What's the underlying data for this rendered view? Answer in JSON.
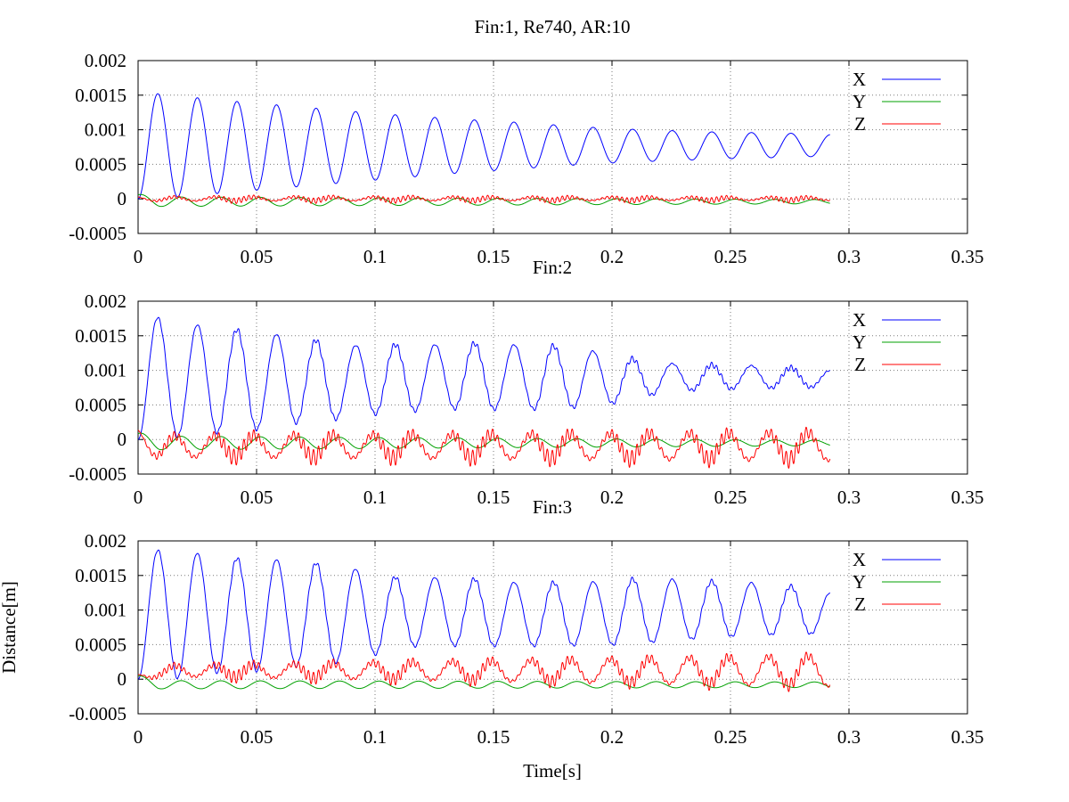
{
  "chart_data": [
    {
      "type": "line",
      "title": "Fin:1, Re740, AR:10",
      "xlabel": "",
      "ylabel": "",
      "xlim": [
        0,
        0.35
      ],
      "ylim": [
        -0.0005,
        0.002
      ],
      "x_ticks": [
        "0",
        "0.05",
        "0.1",
        "0.15",
        "0.2",
        "0.25",
        "0.3",
        "0.35"
      ],
      "y_ticks": [
        "0.002",
        "0.0015",
        "0.001",
        "0.0005",
        "0",
        "-0.0005"
      ],
      "grid": true,
      "legend": "top-right",
      "x_end": 0.292,
      "period": 0.0167,
      "series": [
        {
          "name": "X",
          "color": "#0000ff",
          "peaks": [
            0.00155,
            0.00149,
            0.00143,
            0.00138,
            0.00133,
            0.00128,
            0.00123,
            0.00119,
            0.00115,
            0.00112,
            0.00108,
            0.00104,
            0.00101,
            0.00099,
            0.00097,
            0.00096,
            0.00095,
            0.00093
          ],
          "troughs": [
            0.0,
            3e-05,
            8e-05,
            0.00013,
            0.00018,
            0.00023,
            0.00028,
            0.00033,
            0.00038,
            0.00042,
            0.00046,
            0.0005,
            0.00053,
            0.00055,
            0.00057,
            0.00059,
            0.0006,
            0.00062
          ],
          "ripple": 0.0
        },
        {
          "name": "Y",
          "color": "#00a000",
          "amplitude": [
            7e-05,
            3e-05
          ],
          "offset": -4e-05,
          "ripple": 0.0
        },
        {
          "name": "Z",
          "color": "#ff0000",
          "amplitude": [
            3e-05,
            2e-05
          ],
          "offset": 0.0,
          "ripple": 4e-05
        }
      ]
    },
    {
      "type": "line",
      "title": "Fin:2",
      "xlabel": "",
      "ylabel": "",
      "xlim": [
        0,
        0.35
      ],
      "ylim": [
        -0.0005,
        0.002
      ],
      "x_ticks": [
        "0",
        "0.05",
        "0.1",
        "0.15",
        "0.2",
        "0.25",
        "0.3",
        "0.35"
      ],
      "y_ticks": [
        "0.002",
        "0.0015",
        "0.001",
        "0.0005",
        "0",
        "-0.0005"
      ],
      "grid": true,
      "legend": "top-right",
      "x_end": 0.292,
      "period": 0.0167,
      "series": [
        {
          "name": "X",
          "color": "#0000ff",
          "peaks": [
            0.00184,
            0.00168,
            0.00163,
            0.00154,
            0.00149,
            0.00135,
            0.00138,
            0.00136,
            0.0014,
            0.00137,
            0.00137,
            0.0013,
            0.00118,
            0.0011,
            0.00108,
            0.00107,
            0.00104,
            0.001
          ],
          "troughs": [
            0.0,
            5e-05,
            0.0001,
            0.00015,
            0.00025,
            0.0003,
            0.00038,
            0.00042,
            0.00045,
            0.00043,
            0.00044,
            0.00047,
            0.00055,
            0.0007,
            0.00072,
            0.00074,
            0.00075,
            0.00076
          ],
          "ripple": 4e-05
        },
        {
          "name": "Y",
          "color": "#00a000",
          "amplitude": [
            0.0001,
            4e-05
          ],
          "offset": -5e-05,
          "ripple": 0.0
        },
        {
          "name": "Z",
          "color": "#ff0000",
          "amplitude": [
            0.00015,
            0.0002
          ],
          "offset": -0.0001,
          "ripple": 0.00012
        }
      ]
    },
    {
      "type": "line",
      "title": "Fin:3",
      "xlabel": "Time[s]",
      "ylabel": "Distance[m]",
      "xlim": [
        0,
        0.35
      ],
      "ylim": [
        -0.0005,
        0.002
      ],
      "x_ticks": [
        "0",
        "0.05",
        "0.1",
        "0.15",
        "0.2",
        "0.25",
        "0.3",
        "0.35"
      ],
      "y_ticks": [
        "0.002",
        "0.0015",
        "0.001",
        "0.0005",
        "0",
        "-0.0005"
      ],
      "grid": true,
      "legend": "top-right",
      "x_end": 0.292,
      "period": 0.0167,
      "series": [
        {
          "name": "X",
          "color": "#0000ff",
          "peaks": [
            0.00185,
            0.00188,
            0.00175,
            0.00175,
            0.0017,
            0.00165,
            0.00148,
            0.00147,
            0.00147,
            0.0014,
            0.0014,
            0.0014,
            0.00145,
            0.00145,
            0.00142,
            0.0014,
            0.00135,
            0.00125
          ],
          "troughs": [
            -8e-05,
            2e-05,
            0.0001,
            0.00012,
            0.0002,
            0.00025,
            0.00038,
            0.0005,
            0.00048,
            0.00048,
            0.00048,
            0.00049,
            0.0005,
            0.00055,
            0.0006,
            0.00063,
            0.00065,
            0.00066
          ],
          "ripple": 3e-05
        },
        {
          "name": "Y",
          "color": "#00a000",
          "amplitude": [
            6e-05,
            4e-05
          ],
          "offset": -8e-05,
          "ripple": 0.0
        },
        {
          "name": "Z",
          "color": "#ff0000",
          "amplitude": [
            7e-05,
            0.00022
          ],
          "offset": 0.00012,
          "ripple": 9e-05
        }
      ]
    }
  ]
}
